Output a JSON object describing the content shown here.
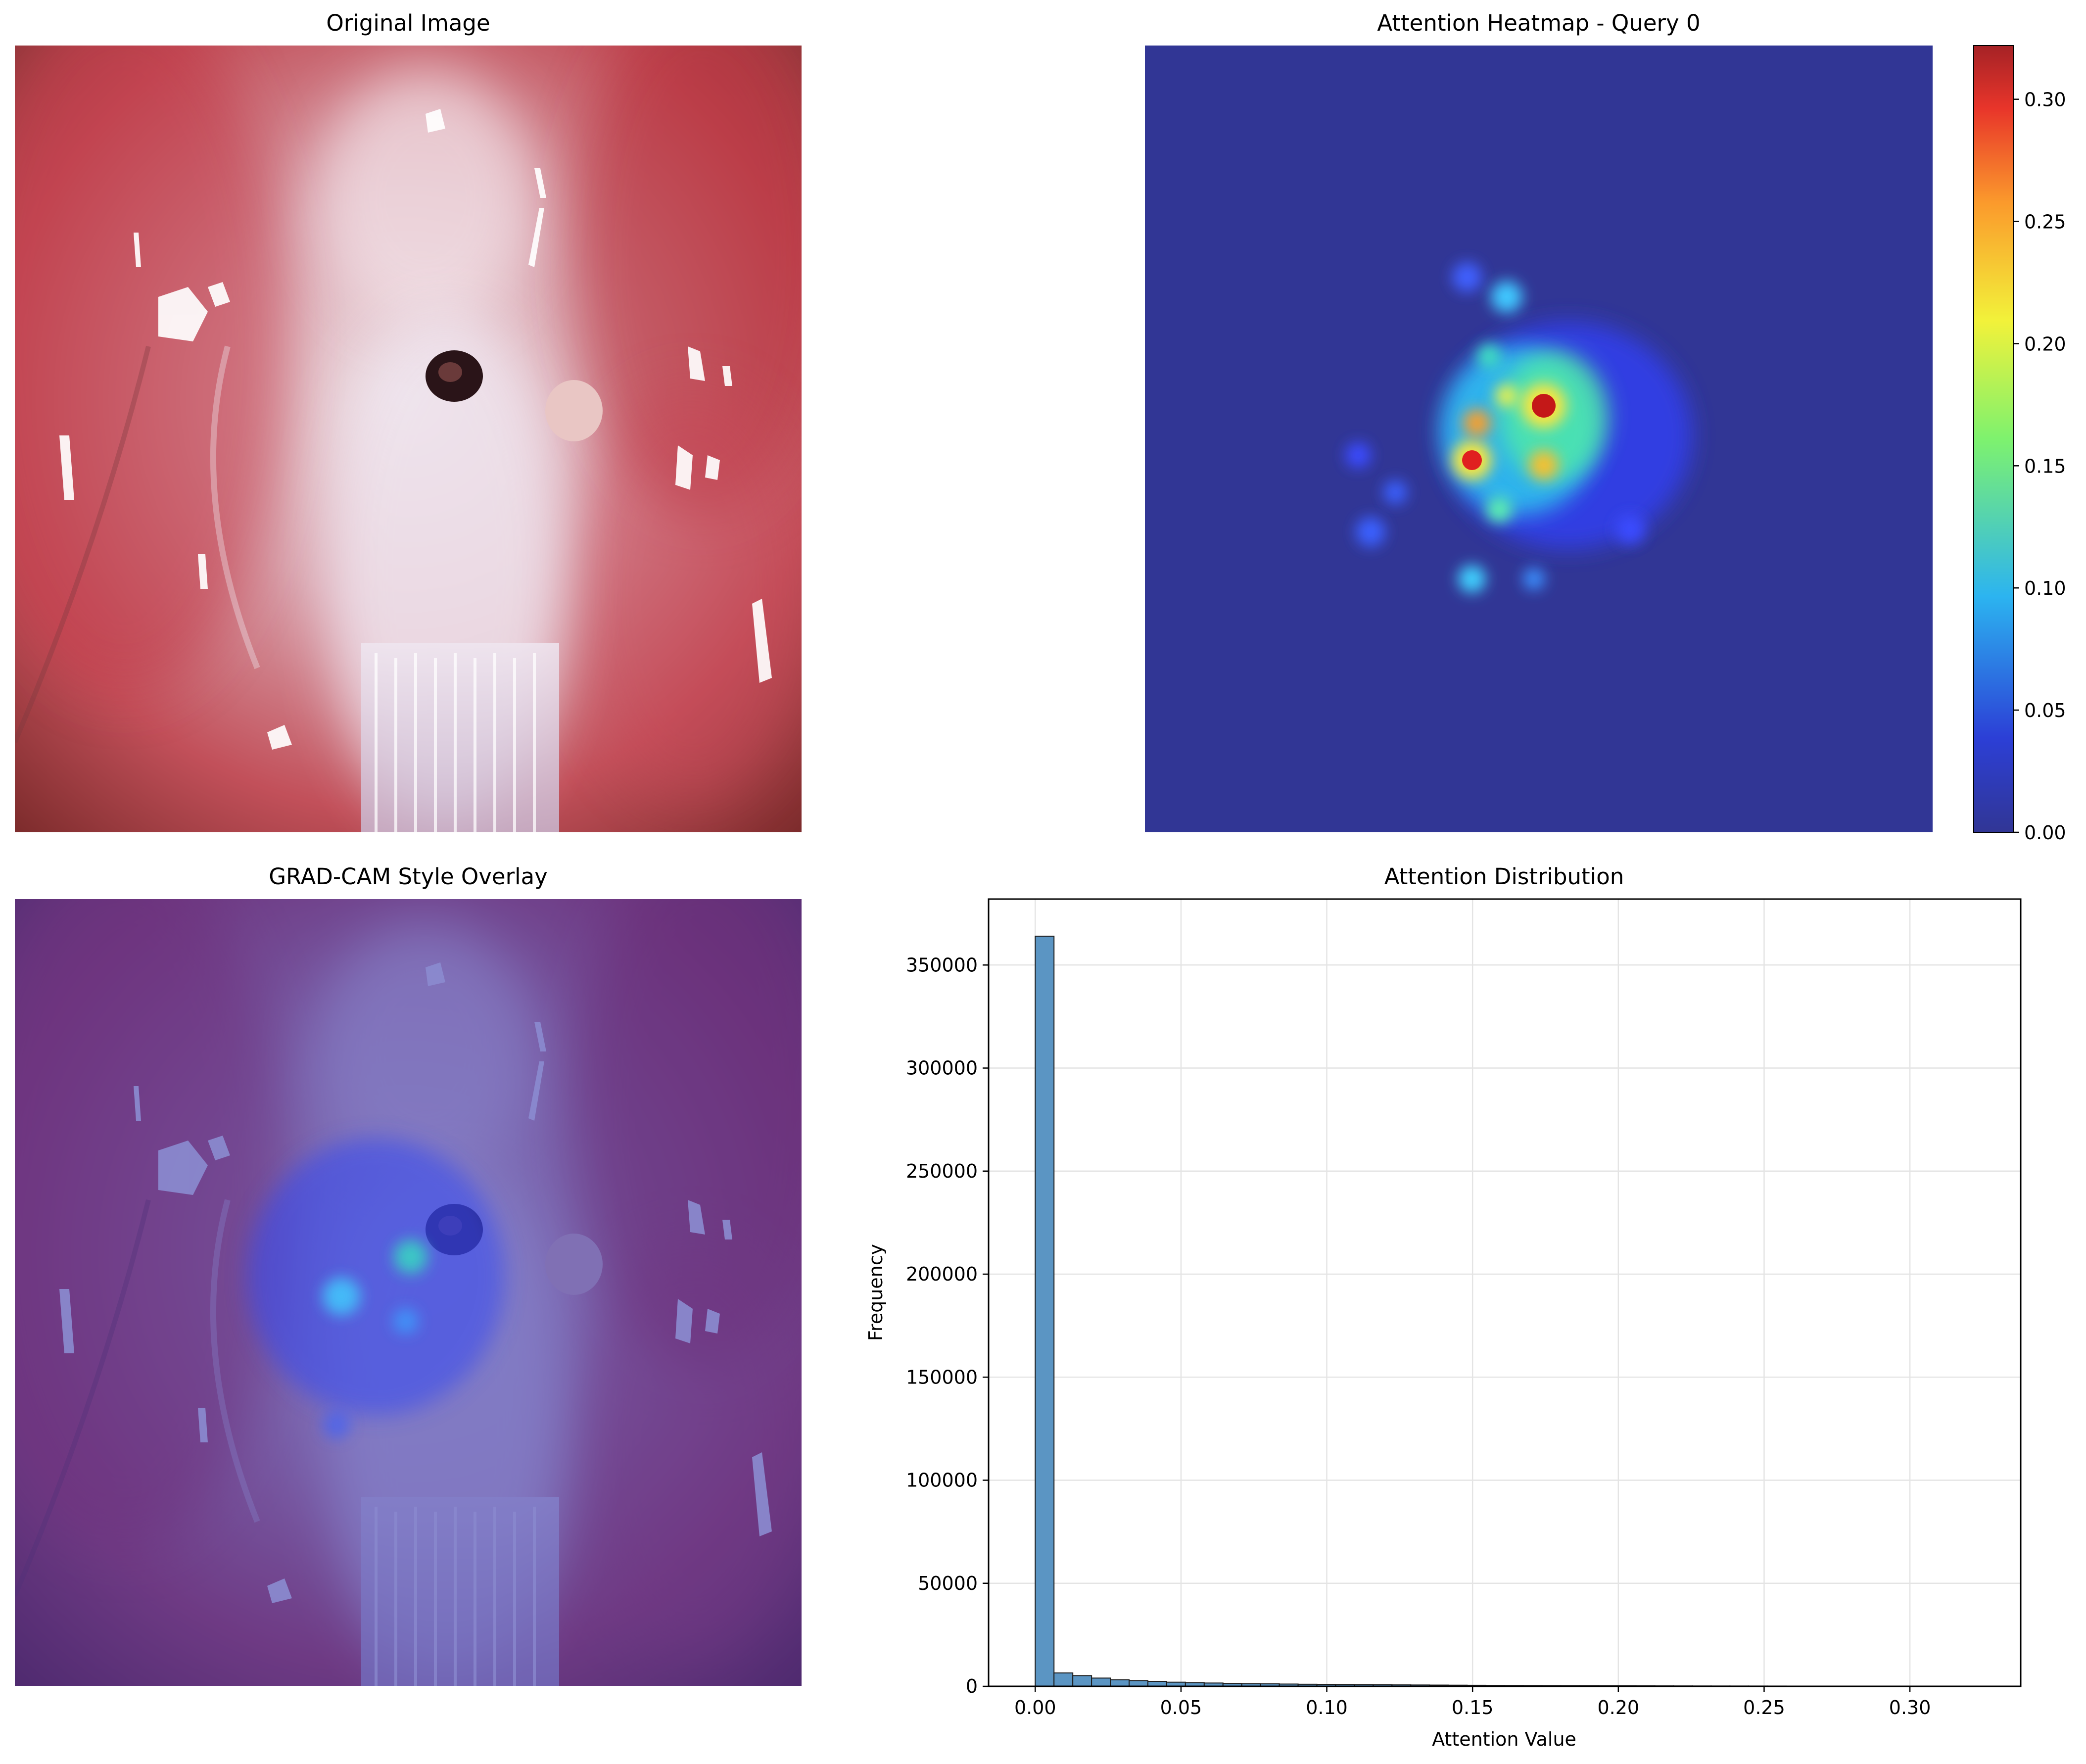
{
  "panels": {
    "original": {
      "title": "Original Image"
    },
    "heatmap": {
      "title": "Attention Heatmap - Query 0"
    },
    "overlay": {
      "title": "GRAD-CAM Style Overlay"
    },
    "histogram": {
      "title": "Attention Distribution"
    }
  },
  "colors": {
    "bar_fill": "#5b95c3",
    "bar_edge": "#1f1f1f",
    "heatmap_background": "#313695",
    "grid": "#e4e4e4"
  },
  "chart_data": [
    {
      "type": "heatmap",
      "title": "Attention Heatmap - Query 0",
      "colormap": "jet",
      "colorbar": {
        "ticks": [
          0.0,
          0.05,
          0.1,
          0.15,
          0.2,
          0.25,
          0.3
        ],
        "tick_labels": [
          "0.00",
          "0.05",
          "0.10",
          "0.15",
          "0.20",
          "0.25",
          "0.30"
        ],
        "range": [
          0,
          0.322
        ]
      }
    },
    {
      "type": "bar",
      "title": "Attention Distribution",
      "xlabel": "Attention Value",
      "ylabel": "Frequency",
      "xlim": [
        -0.016,
        0.338
      ],
      "ylim": [
        0,
        382000
      ],
      "xticks": [
        0.0,
        0.05,
        0.1,
        0.15,
        0.2,
        0.25,
        0.3
      ],
      "xtick_labels": [
        "0.00",
        "0.05",
        "0.10",
        "0.15",
        "0.20",
        "0.25",
        "0.30"
      ],
      "yticks": [
        0,
        50000,
        100000,
        150000,
        200000,
        250000,
        300000,
        350000
      ],
      "ytick_labels": [
        "0",
        "50000",
        "100000",
        "150000",
        "200000",
        "250000",
        "300000",
        "350000"
      ],
      "grid": true,
      "bins": 50,
      "bin_range": [
        0,
        0.322
      ],
      "values": [
        364000,
        6500,
        5200,
        4000,
        3200,
        2800,
        2400,
        2000,
        1800,
        1600,
        1400,
        1300,
        1200,
        1100,
        1000,
        950,
        900,
        850,
        800,
        700,
        650,
        600,
        550,
        500,
        450,
        420,
        380,
        350,
        320,
        300,
        270,
        250,
        230,
        210,
        190,
        170,
        160,
        150,
        140,
        130,
        120,
        110,
        100,
        90,
        80,
        70,
        60,
        50,
        40,
        30
      ]
    }
  ]
}
